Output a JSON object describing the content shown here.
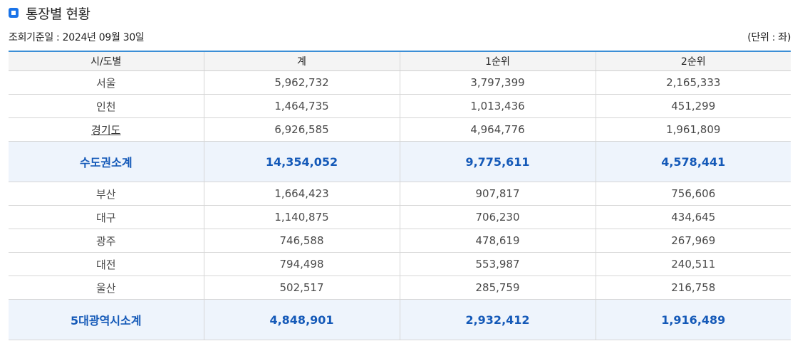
{
  "section": {
    "title": "통장별 현황"
  },
  "meta": {
    "date_label": "조회기준일 : 2024년 09월 30일",
    "unit_label": "(단위 : 좌)"
  },
  "table": {
    "headers": [
      "시/도별",
      "계",
      "1순위",
      "2순위"
    ],
    "rows": [
      {
        "region": "서울",
        "total": "5,962,732",
        "rank1": "3,797,399",
        "rank2": "2,165,333"
      },
      {
        "region": "인천",
        "total": "1,464,735",
        "rank1": "1,013,436",
        "rank2": "451,299"
      },
      {
        "region": "경기도",
        "total": "6,926,585",
        "rank1": "4,964,776",
        "rank2": "1,961,809"
      },
      {
        "region": "수도권소계",
        "total": "14,354,052",
        "rank1": "9,775,611",
        "rank2": "4,578,441"
      },
      {
        "region": "부산",
        "total": "1,664,423",
        "rank1": "907,817",
        "rank2": "756,606"
      },
      {
        "region": "대구",
        "total": "1,140,875",
        "rank1": "706,230",
        "rank2": "434,645"
      },
      {
        "region": "광주",
        "total": "746,588",
        "rank1": "478,619",
        "rank2": "267,969"
      },
      {
        "region": "대전",
        "total": "794,498",
        "rank1": "553,987",
        "rank2": "240,511"
      },
      {
        "region": "울산",
        "total": "502,517",
        "rank1": "285,759",
        "rank2": "216,758"
      },
      {
        "region": "5대광역시소계",
        "total": "4,848,901",
        "rank1": "2,932,412",
        "rank2": "1,916,489"
      }
    ]
  }
}
